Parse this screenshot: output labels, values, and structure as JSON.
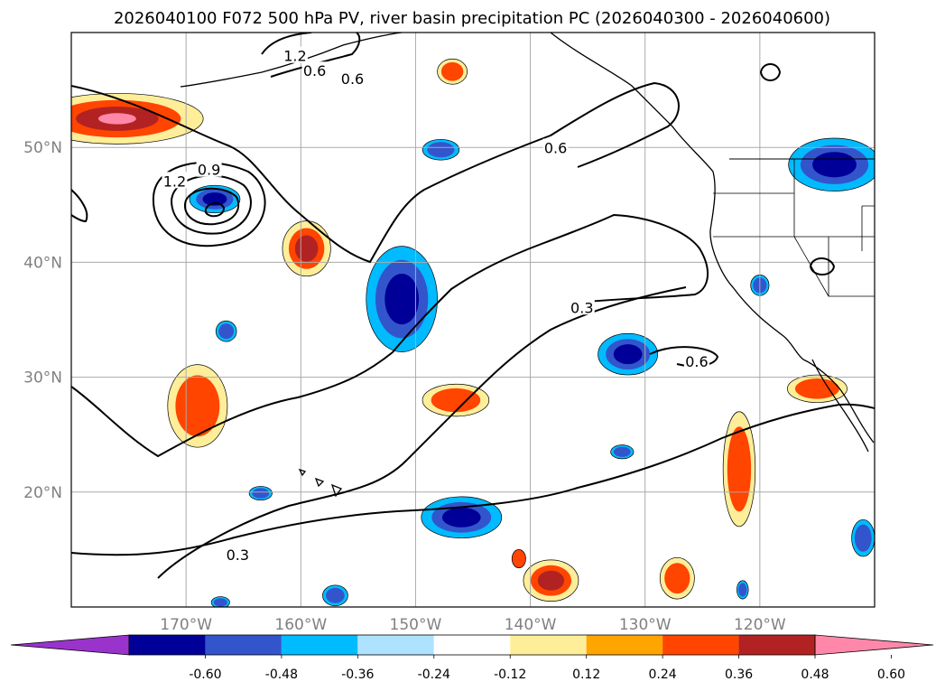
{
  "title": "2026040100 F072 500 hPa PV, river basin precipitation PC (2026040300 - 2026040600)",
  "map": {
    "lon_range": [
      -180,
      -110
    ],
    "lat_range": [
      10,
      60
    ],
    "lon_ticks": [
      -170,
      -160,
      -150,
      -140,
      -130,
      -120
    ],
    "lat_ticks": [
      20,
      30,
      40,
      50
    ],
    "lon_labels": [
      "170°W",
      "160°W",
      "150°W",
      "140°W",
      "130°W",
      "120°W"
    ],
    "lat_labels": [
      "20°N",
      "30°N",
      "40°N",
      "50°N"
    ],
    "grid": true
  },
  "pv_contours": {
    "unit": "PVU",
    "labels": [
      {
        "text": "1.2",
        "lon": -160.5,
        "lat": 57.9
      },
      {
        "text": "0.6",
        "lon": -158.8,
        "lat": 56.6
      },
      {
        "text": "0.6",
        "lon": -155.5,
        "lat": 55.9
      },
      {
        "text": "0.6",
        "lon": -137.8,
        "lat": 49.9
      },
      {
        "text": "0.9",
        "lon": -168.0,
        "lat": 48.0
      },
      {
        "text": "1.2",
        "lon": -171.0,
        "lat": 47.0
      },
      {
        "text": "0.3",
        "lon": -135.5,
        "lat": 36.0
      },
      {
        "text": "0.6",
        "lon": -125.5,
        "lat": 31.3
      },
      {
        "text": "0.3",
        "lon": -165.5,
        "lat": 14.5
      }
    ]
  },
  "colorbar": {
    "colors": [
      "#9933cc",
      "#000099",
      "#3355cc",
      "#00bbff",
      "#aee3ff",
      "#ffffff",
      "#ffee99",
      "#ffa500",
      "#ff4500",
      "#b22222",
      "#ff88aa"
    ],
    "ticks": [
      "-0.60",
      "-0.48",
      "-0.36",
      "-0.24",
      "-0.12",
      "0.12",
      "0.24",
      "0.36",
      "0.48",
      "0.60"
    ]
  },
  "precip_blobs": [
    {
      "lon": -176,
      "lat": 52.5,
      "rlon": 7.5,
      "rlat": 2.2,
      "levels": [
        "#ffee99",
        "#ff4500",
        "#b22222",
        "#ff88aa"
      ]
    },
    {
      "lon": -146.8,
      "lat": 56.6,
      "rlon": 1.3,
      "rlat": 1.1,
      "levels": [
        "#ffee99",
        "#ff4500"
      ]
    },
    {
      "lon": -147.8,
      "lat": 49.8,
      "rlon": 1.6,
      "rlat": 0.9,
      "levels": [
        "#00bbff",
        "#3355cc"
      ]
    },
    {
      "lon": -167.5,
      "lat": 45.5,
      "rlon": 2.2,
      "rlat": 1.2,
      "levels": [
        "#00bbff",
        "#3355cc",
        "#000099"
      ]
    },
    {
      "lon": -159.5,
      "lat": 41.2,
      "rlon": 2.1,
      "rlat": 2.4,
      "levels": [
        "#ffee99",
        "#ff4500",
        "#b22222"
      ]
    },
    {
      "lon": -151.2,
      "lat": 36.8,
      "rlon": 3.1,
      "rlat": 4.6,
      "levels": [
        "#00bbff",
        "#3355cc",
        "#000099"
      ]
    },
    {
      "lon": -166.5,
      "lat": 34.0,
      "rlon": 0.9,
      "rlat": 0.9,
      "levels": [
        "#00bbff",
        "#3355cc"
      ]
    },
    {
      "lon": -169.0,
      "lat": 27.5,
      "rlon": 2.6,
      "rlat": 3.6,
      "levels": [
        "#ffee99",
        "#ff4500"
      ]
    },
    {
      "lon": -146.5,
      "lat": 28.0,
      "rlon": 2.9,
      "rlat": 1.4,
      "levels": [
        "#ffee99",
        "#ff4500"
      ]
    },
    {
      "lon": -131.5,
      "lat": 32.0,
      "rlon": 2.6,
      "rlat": 1.8,
      "levels": [
        "#00bbff",
        "#3355cc",
        "#000099"
      ]
    },
    {
      "lon": -132.0,
      "lat": 23.5,
      "rlon": 1.0,
      "rlat": 0.6,
      "levels": [
        "#00bbff",
        "#3355cc"
      ]
    },
    {
      "lon": -121.8,
      "lat": 22.0,
      "rlon": 1.4,
      "rlat": 5.0,
      "levels": [
        "#ffee99",
        "#ff4500"
      ]
    },
    {
      "lon": -115.0,
      "lat": 29.0,
      "rlon": 2.6,
      "rlat": 1.2,
      "levels": [
        "#ffee99",
        "#ff4500"
      ]
    },
    {
      "lon": -113.5,
      "lat": 48.5,
      "rlon": 4.0,
      "rlat": 2.3,
      "levels": [
        "#00bbff",
        "#3355cc",
        "#000099"
      ]
    },
    {
      "lon": -111.0,
      "lat": 16.0,
      "rlon": 1.0,
      "rlat": 1.6,
      "levels": [
        "#00bbff",
        "#3355cc"
      ]
    },
    {
      "lon": -146.0,
      "lat": 17.8,
      "rlon": 3.5,
      "rlat": 1.8,
      "levels": [
        "#00bbff",
        "#3355cc",
        "#000099"
      ]
    },
    {
      "lon": -163.5,
      "lat": 19.9,
      "rlon": 1.0,
      "rlat": 0.6,
      "levels": [
        "#00bbff",
        "#3355cc"
      ]
    },
    {
      "lon": -138.2,
      "lat": 12.3,
      "rlon": 2.4,
      "rlat": 1.8,
      "levels": [
        "#ffee99",
        "#ff4500",
        "#b22222"
      ]
    },
    {
      "lon": -127.2,
      "lat": 12.5,
      "rlon": 1.5,
      "rlat": 1.8,
      "levels": [
        "#ffee99",
        "#ff4500"
      ]
    },
    {
      "lon": -141.0,
      "lat": 14.2,
      "rlon": 0.6,
      "rlat": 0.8,
      "levels": [
        "#ff4500"
      ]
    },
    {
      "lon": -121.5,
      "lat": 11.5,
      "rlon": 0.5,
      "rlat": 0.8,
      "levels": [
        "#00bbff",
        "#3355cc"
      ]
    },
    {
      "lon": -157.0,
      "lat": 11.0,
      "rlon": 1.1,
      "rlat": 0.9,
      "levels": [
        "#00bbff",
        "#3355cc"
      ]
    },
    {
      "lon": -167.0,
      "lat": 10.4,
      "rlon": 0.8,
      "rlat": 0.5,
      "levels": [
        "#00bbff",
        "#3355cc"
      ]
    },
    {
      "lon": -120.0,
      "lat": 38.0,
      "rlon": 0.8,
      "rlat": 0.9,
      "levels": [
        "#00bbff",
        "#3355cc"
      ]
    }
  ]
}
